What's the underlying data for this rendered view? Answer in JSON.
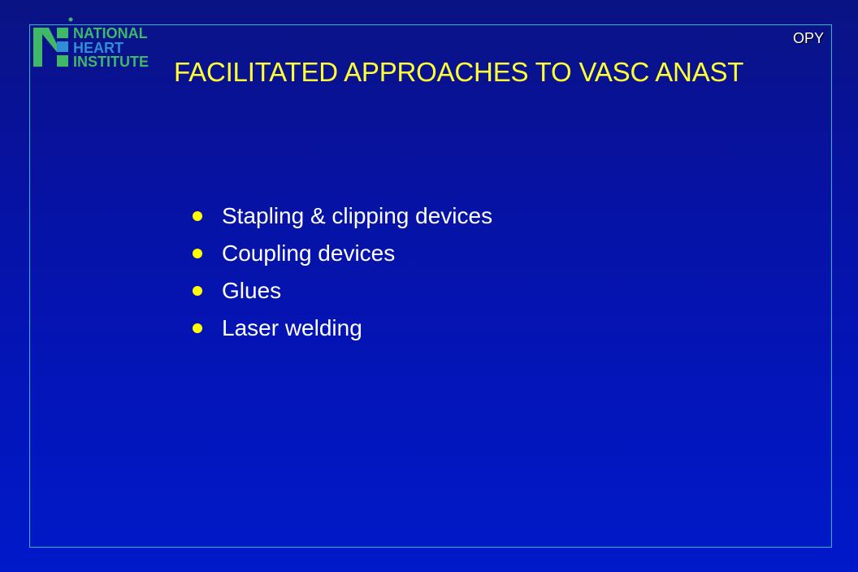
{
  "logo": {
    "line1": "NATIONAL",
    "line2": "HEART",
    "line3": "INSTITUTE"
  },
  "corner_tag": "OPY",
  "title": "FACILITATED APPROACHES TO VASC ANAST",
  "bullets": [
    "Stapling & clipping devices",
    "Coupling devices",
    "Glues",
    "Laser welding"
  ],
  "colors": {
    "background": "#0712a0",
    "title": "#ffff33",
    "bullet": "#ffff00",
    "frame": "#2fb8c4",
    "logo_green": "#3fb86a",
    "logo_blue": "#2f8ed6"
  },
  "icons": {
    "logo_mark": "nhi-logo-icon",
    "bullet": "bullet-dot-icon"
  }
}
